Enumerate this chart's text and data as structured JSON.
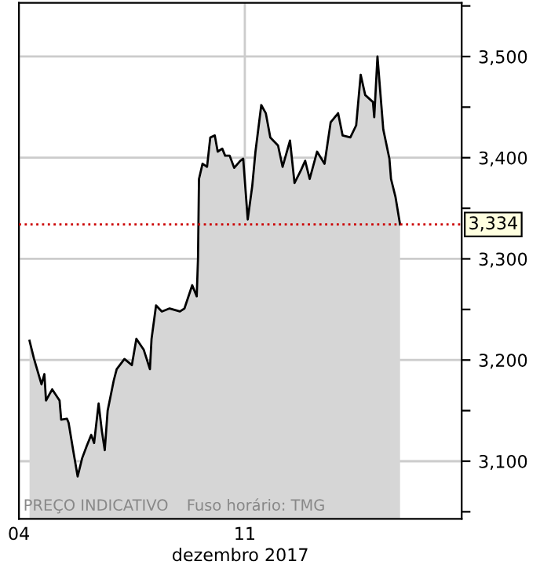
{
  "chart_data": {
    "type": "area",
    "xlabel": "dezembro 2017",
    "annotations": [
      "PREÇO INDICATIVO",
      "Fuso horário: TMG"
    ],
    "series": [
      {
        "color": "#000000",
        "x": [
          4.33,
          4.47,
          4.7,
          4.79,
          4.84,
          5.03,
          5.26,
          5.31,
          5.49,
          5.54,
          5.68,
          5.82,
          5.96,
          6.1,
          6.24,
          6.33,
          6.47,
          6.57,
          6.66,
          6.75,
          6.94,
          7.03,
          7.27,
          7.5,
          7.64,
          7.87,
          8.06,
          8.11,
          8.25,
          8.43,
          8.67,
          8.99,
          9.13,
          9.37,
          9.51,
          9.55,
          9.58,
          9.69,
          9.83,
          9.93,
          10.07,
          10.16,
          10.3,
          10.39,
          10.53,
          10.67,
          10.86,
          10.95,
          11.09,
          11.23,
          11.33,
          11.51,
          11.65,
          11.79,
          12.03,
          12.17,
          12.4,
          12.54,
          12.73,
          12.87,
          13.01,
          13.24,
          13.47,
          13.66,
          13.89,
          14.03,
          14.27,
          14.45,
          14.59,
          14.73,
          14.97,
          15.01,
          15.11,
          15.29,
          15.48,
          15.53,
          15.67,
          15.81
        ],
        "values": [
          3219,
          3201,
          3176,
          3186,
          3160,
          3171,
          3160,
          3141,
          3142,
          3138,
          3111,
          3085,
          3103,
          3115,
          3126,
          3118,
          3157,
          3130,
          3111,
          3150,
          3180,
          3191,
          3201,
          3195,
          3221,
          3210,
          3191,
          3221,
          3254,
          3248,
          3251,
          3248,
          3251,
          3274,
          3263,
          3301,
          3379,
          3394,
          3391,
          3420,
          3422,
          3406,
          3409,
          3402,
          3402,
          3390,
          3397,
          3399,
          3339,
          3372,
          3406,
          3452,
          3444,
          3420,
          3412,
          3391,
          3417,
          3375,
          3387,
          3397,
          3379,
          3406,
          3394,
          3435,
          3444,
          3422,
          3420,
          3432,
          3482,
          3462,
          3455,
          3440,
          3500,
          3428,
          3399,
          3379,
          3361,
          3334
        ]
      }
    ],
    "xlim": [
      4,
      17.72
    ],
    "xticks": [
      {
        "value": 4,
        "label": "04"
      },
      {
        "value": 11,
        "label": "11"
      }
    ],
    "ylim": [
      3043,
      3553
    ],
    "yticks": [
      {
        "value": 3050,
        "label": null
      },
      {
        "value": 3100,
        "label": "3,100"
      },
      {
        "value": 3150,
        "label": null
      },
      {
        "value": 3200,
        "label": "3,200"
      },
      {
        "value": 3250,
        "label": null
      },
      {
        "value": 3300,
        "label": "3,300"
      },
      {
        "value": 3350,
        "label": null
      },
      {
        "value": 3400,
        "label": "3,400"
      },
      {
        "value": 3450,
        "label": null
      },
      {
        "value": 3500,
        "label": "3,500"
      },
      {
        "value": 3550,
        "label": null
      }
    ],
    "grid": true,
    "ref_lines": [
      {
        "axis": "y",
        "value": 3334,
        "label": "3,334",
        "color": "#cc0000",
        "line_style": "dotted"
      }
    ]
  }
}
